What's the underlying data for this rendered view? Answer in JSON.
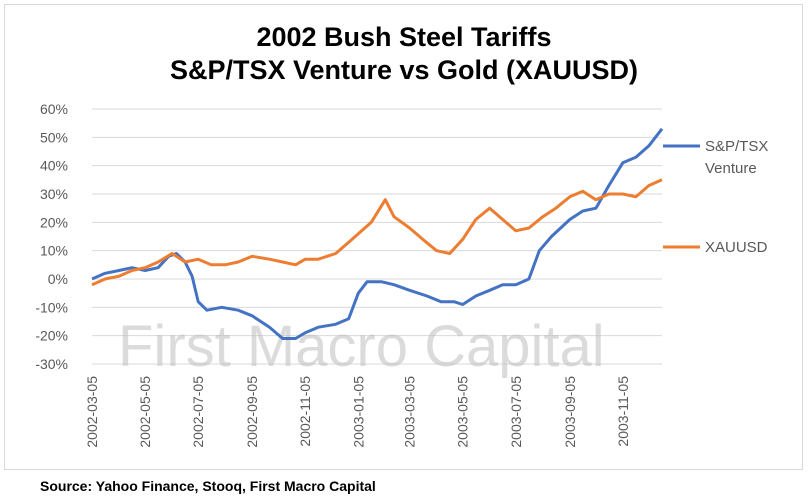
{
  "title_line1": "2002 Bush Steel Tariffs",
  "title_line2": "S&P/TSX Venture vs Gold (XAUUSD)",
  "source": "Source: Yahoo Finance, Stooq, First Macro Capital",
  "watermark": "First Macro Capital",
  "chart_data": {
    "type": "line",
    "title": "2002 Bush Steel Tariffs S&P/TSX Venture vs Gold (XAUUSD)",
    "ylim": [
      -30,
      60
    ],
    "y_ticks": [
      "60%",
      "50%",
      "40%",
      "30%",
      "20%",
      "10%",
      "0%",
      "-10%",
      "-20%",
      "-30%"
    ],
    "x_ticks": [
      "2002-03-05",
      "2002-05-05",
      "2002-07-05",
      "2002-09-05",
      "2002-11-05",
      "2003-01-05",
      "2003-03-05",
      "2003-05-05",
      "2003-07-05",
      "2003-09-05",
      "2003-11-05"
    ],
    "x_range": [
      "2002-03-05",
      "2003-12-20"
    ],
    "grid": "horizontal",
    "legend_position": "right",
    "series": [
      {
        "name": "S&P/TSX Venture",
        "color": "#4472c4",
        "points": [
          [
            "2002-03-05",
            0
          ],
          [
            "2002-03-20",
            2
          ],
          [
            "2002-04-05",
            3
          ],
          [
            "2002-04-20",
            4
          ],
          [
            "2002-05-05",
            3
          ],
          [
            "2002-05-20",
            4
          ],
          [
            "2002-06-01",
            8
          ],
          [
            "2002-06-10",
            9
          ],
          [
            "2002-06-20",
            6
          ],
          [
            "2002-06-28",
            1
          ],
          [
            "2002-07-05",
            -8
          ],
          [
            "2002-07-15",
            -11
          ],
          [
            "2002-08-01",
            -10
          ],
          [
            "2002-08-20",
            -11
          ],
          [
            "2002-09-05",
            -13
          ],
          [
            "2002-09-25",
            -17
          ],
          [
            "2002-10-10",
            -21
          ],
          [
            "2002-10-25",
            -21
          ],
          [
            "2002-11-05",
            -19
          ],
          [
            "2002-11-20",
            -17
          ],
          [
            "2002-12-10",
            -16
          ],
          [
            "2002-12-25",
            -14
          ],
          [
            "2003-01-05",
            -5
          ],
          [
            "2003-01-15",
            -1
          ],
          [
            "2003-02-01",
            -1
          ],
          [
            "2003-02-15",
            -2
          ],
          [
            "2003-03-05",
            -4
          ],
          [
            "2003-03-25",
            -6
          ],
          [
            "2003-04-10",
            -8
          ],
          [
            "2003-04-25",
            -8
          ],
          [
            "2003-05-05",
            -9
          ],
          [
            "2003-05-20",
            -6
          ],
          [
            "2003-06-05",
            -4
          ],
          [
            "2003-06-20",
            -2
          ],
          [
            "2003-07-05",
            -2
          ],
          [
            "2003-07-20",
            0
          ],
          [
            "2003-08-01",
            10
          ],
          [
            "2003-08-15",
            15
          ],
          [
            "2003-09-05",
            21
          ],
          [
            "2003-09-20",
            24
          ],
          [
            "2003-10-05",
            25
          ],
          [
            "2003-10-20",
            33
          ],
          [
            "2003-11-05",
            41
          ],
          [
            "2003-11-20",
            43
          ],
          [
            "2003-12-05",
            47
          ],
          [
            "2003-12-20",
            53
          ]
        ]
      },
      {
        "name": "XAUUSD",
        "color": "#ed7d31",
        "points": [
          [
            "2002-03-05",
            -2
          ],
          [
            "2002-03-20",
            0
          ],
          [
            "2002-04-05",
            1
          ],
          [
            "2002-04-20",
            3
          ],
          [
            "2002-05-05",
            4
          ],
          [
            "2002-05-20",
            6
          ],
          [
            "2002-06-05",
            9
          ],
          [
            "2002-06-20",
            6
          ],
          [
            "2002-07-05",
            7
          ],
          [
            "2002-07-20",
            5
          ],
          [
            "2002-08-05",
            5
          ],
          [
            "2002-08-20",
            6
          ],
          [
            "2002-09-05",
            8
          ],
          [
            "2002-09-25",
            7
          ],
          [
            "2002-10-10",
            6
          ],
          [
            "2002-10-25",
            5
          ],
          [
            "2002-11-05",
            7
          ],
          [
            "2002-11-20",
            7
          ],
          [
            "2002-12-10",
            9
          ],
          [
            "2002-12-25",
            13
          ],
          [
            "2003-01-05",
            16
          ],
          [
            "2003-01-20",
            20
          ],
          [
            "2003-02-05",
            28
          ],
          [
            "2003-02-15",
            22
          ],
          [
            "2003-03-05",
            18
          ],
          [
            "2003-03-20",
            14
          ],
          [
            "2003-04-05",
            10
          ],
          [
            "2003-04-20",
            9
          ],
          [
            "2003-05-05",
            14
          ],
          [
            "2003-05-20",
            21
          ],
          [
            "2003-06-05",
            25
          ],
          [
            "2003-06-20",
            21
          ],
          [
            "2003-07-05",
            17
          ],
          [
            "2003-07-20",
            18
          ],
          [
            "2003-08-05",
            22
          ],
          [
            "2003-08-20",
            25
          ],
          [
            "2003-09-05",
            29
          ],
          [
            "2003-09-20",
            31
          ],
          [
            "2003-10-05",
            28
          ],
          [
            "2003-10-20",
            30
          ],
          [
            "2003-11-05",
            30
          ],
          [
            "2003-11-20",
            29
          ],
          [
            "2003-12-05",
            33
          ],
          [
            "2003-12-20",
            35
          ]
        ]
      }
    ]
  }
}
